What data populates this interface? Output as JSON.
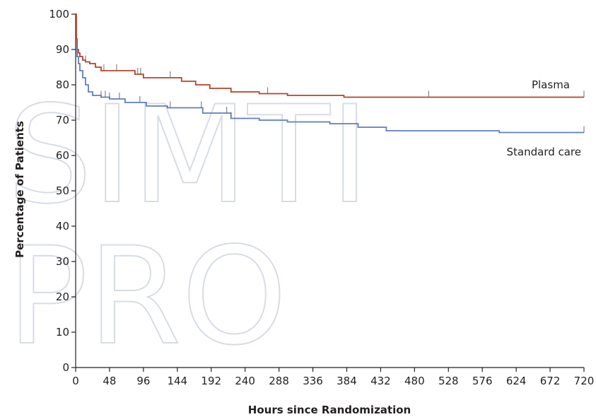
{
  "chart_data": {
    "type": "line",
    "subtype": "kaplan-meier",
    "title": "",
    "xlabel": "Hours since Randomization",
    "ylabel": "Percentage of Patients",
    "xlim": [
      0,
      720
    ],
    "ylim": [
      0,
      100
    ],
    "x_ticks": [
      0,
      48,
      96,
      144,
      192,
      240,
      288,
      336,
      384,
      432,
      480,
      528,
      576,
      624,
      672,
      720
    ],
    "y_ticks": [
      0,
      10,
      20,
      30,
      40,
      50,
      60,
      70,
      80,
      90,
      100
    ],
    "grid": false,
    "legend": "inline labels at right end of lines",
    "watermark_lines": [
      "SIMTI",
      "PRO"
    ],
    "series": [
      {
        "name": "Plasma",
        "color": "#b5432b",
        "x": [
          0,
          1,
          2,
          4,
          6,
          10,
          14,
          20,
          28,
          36,
          60,
          84,
          96,
          150,
          170,
          190,
          220,
          260,
          300,
          380,
          420,
          720
        ],
        "y": [
          100,
          93,
          90,
          89,
          88,
          87,
          86.5,
          86,
          85,
          84,
          84,
          83,
          82,
          81,
          80,
          79,
          78,
          77.5,
          77,
          76.5,
          76.5,
          76.5
        ],
        "censor_x": [
          14,
          40,
          58,
          88,
          92,
          134,
          272,
          500,
          720
        ]
      },
      {
        "name": "Standard care",
        "color": "#5f7fbf",
        "x": [
          0,
          1,
          2,
          4,
          6,
          10,
          14,
          18,
          24,
          36,
          48,
          70,
          100,
          130,
          180,
          220,
          260,
          300,
          360,
          400,
          440,
          500,
          600,
          720
        ],
        "y": [
          91,
          90,
          88,
          86,
          84,
          82,
          80,
          78,
          77,
          76.5,
          76,
          75,
          74,
          73.5,
          72,
          70.5,
          70,
          69.5,
          69,
          68,
          67,
          67,
          66.5,
          66.5
        ],
        "censor_x": [
          36,
          42,
          48,
          62,
          91,
          134,
          178,
          214,
          220,
          720
        ]
      }
    ]
  }
}
